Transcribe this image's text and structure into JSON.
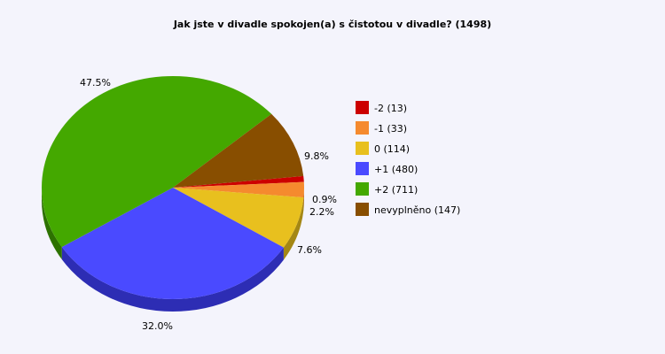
{
  "chart_data": {
    "type": "pie",
    "title": "Jak jste v divadle spokojen(a) s čistotou v divadle? (1498)",
    "slices": [
      {
        "label": "-2",
        "count": 13,
        "percent_label": "0.9%",
        "color": "#cc0000",
        "side": "#8a0000"
      },
      {
        "label": "-1",
        "count": 33,
        "percent_label": "2.2%",
        "color": "#f58a2e",
        "side": "#b0601f"
      },
      {
        "label": "0",
        "count": 114,
        "percent_label": "7.6%",
        "color": "#e8c01e",
        "side": "#a48714"
      },
      {
        "label": "+1",
        "count": 480,
        "percent_label": "32.0%",
        "color": "#4a4aff",
        "side": "#2d2db4"
      },
      {
        "label": "+2",
        "count": 711,
        "percent_label": "47.5%",
        "color": "#44a800",
        "side": "#2d7200"
      },
      {
        "label": "nevyplněno",
        "count": 147,
        "percent_label": "9.8%",
        "color": "#884e00",
        "side": "#5a3300"
      }
    ],
    "legend_position": "right",
    "total": 1498
  }
}
